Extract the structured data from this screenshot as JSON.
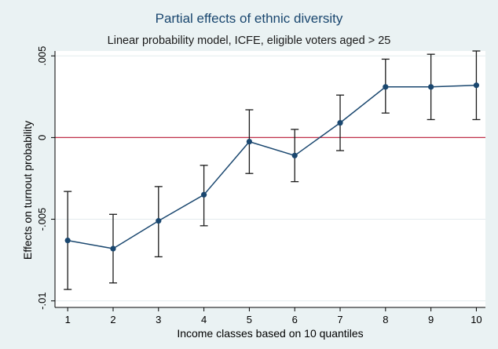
{
  "chart_data": {
    "type": "line",
    "title": "Partial effects of ethnic diversity",
    "subtitle": "Linear probability model, ICFE, eligible voters aged > 25",
    "xlabel": "Income classes based on 10 quantiles",
    "ylabel": "Effects on turnout probability",
    "x": [
      1,
      2,
      3,
      4,
      5,
      6,
      7,
      8,
      9,
      10
    ],
    "x_tick_labels": [
      "1",
      "2",
      "3",
      "4",
      "5",
      "6",
      "7",
      "8",
      "9",
      "10"
    ],
    "y_ticks": [
      -0.01,
      -0.005,
      0,
      0.005
    ],
    "y_tick_labels": [
      "-.01",
      "-.005",
      "0",
      ".005"
    ],
    "xlim": [
      0.72,
      10.2
    ],
    "ylim": [
      -0.0104,
      0.0053
    ],
    "series": [
      {
        "values": [
          -0.0063,
          -0.0068,
          -0.0051,
          -0.0035,
          -0.00025,
          -0.0011,
          0.0009,
          0.0031,
          0.0031,
          0.0032
        ],
        "lower": [
          -0.0093,
          -0.0089,
          -0.0073,
          -0.0054,
          -0.0022,
          -0.0027,
          -0.0008,
          0.0015,
          0.0011,
          0.0011
        ],
        "upper": [
          -0.0033,
          -0.0047,
          -0.003,
          -0.0017,
          0.0017,
          0.0005,
          0.0026,
          0.0048,
          0.0051,
          0.0053
        ]
      }
    ],
    "reference_line": {
      "y": 0,
      "color": "#c0304a"
    },
    "grid": true,
    "colors": {
      "line": "#1a476f",
      "marker": "#1a476f",
      "errorbar": "#1a1a1a",
      "grid": "#e3ebee",
      "plot_bg": "#ffffff",
      "page_bg": "#eaf2f3"
    }
  }
}
